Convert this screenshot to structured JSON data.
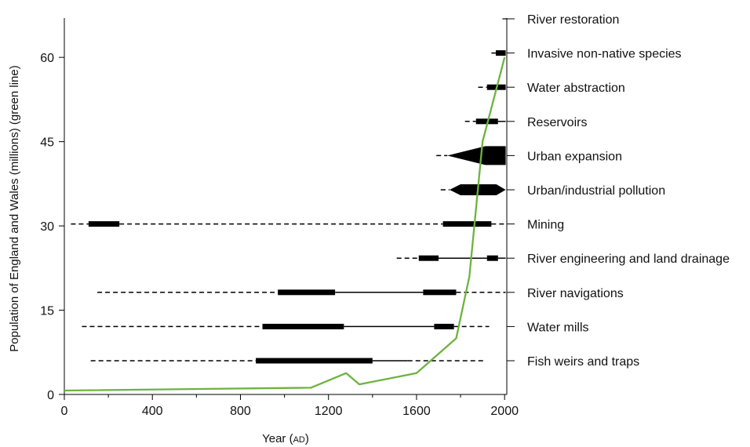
{
  "chart_data": {
    "type": "line",
    "xlabel": "Year (AD)",
    "xlabel_main": "Year (",
    "xlabel_sc": "AD",
    "xlabel_close": ")",
    "ylabel": "Population of England and Wales (millions) (green line)",
    "xlim": [
      0,
      2010
    ],
    "ylim": [
      0,
      67
    ],
    "xticks": [
      0,
      400,
      800,
      1200,
      1600,
      2000
    ],
    "yticks": [
      0,
      15,
      30,
      45,
      60
    ],
    "colors": {
      "population": "#6db33f",
      "pressure": "#000000"
    },
    "series": [
      {
        "values": [
          [
            0,
            0.7
          ],
          [
            1120,
            1.2
          ],
          [
            1280,
            3.8
          ],
          [
            1340,
            1.8
          ],
          [
            1600,
            3.8
          ],
          [
            1780,
            10
          ],
          [
            1840,
            21
          ],
          [
            1900,
            45
          ],
          [
            1940,
            51
          ],
          [
            2000,
            60
          ]
        ]
      }
    ],
    "pressures": [
      {
        "label": "River restoration",
        "segments": [
          {
            "style": "solid",
            "from": 1990,
            "to": 2010,
            "width": 1.2
          }
        ]
      },
      {
        "label": "Invasive non-native species",
        "segments": [
          {
            "style": "solid",
            "from": 1940,
            "to": 1960,
            "width": 1.5
          },
          {
            "style": "bar",
            "from": 1960,
            "to": 2005
          }
        ]
      },
      {
        "label": "Water abstraction",
        "segments": [
          {
            "style": "dashed",
            "from": 1880,
            "to": 1920
          },
          {
            "style": "bar",
            "from": 1920,
            "to": 2005
          }
        ]
      },
      {
        "label": "Reservoirs",
        "segments": [
          {
            "style": "dashed",
            "from": 1820,
            "to": 1870
          },
          {
            "style": "bar",
            "from": 1870,
            "to": 1970
          },
          {
            "style": "solid",
            "from": 1970,
            "to": 2005,
            "width": 1.5
          }
        ]
      },
      {
        "label": "Urban expansion",
        "segments": [
          {
            "style": "dashed",
            "from": 1690,
            "to": 1740
          },
          {
            "style": "wedge",
            "from": 1740,
            "to": 2005
          }
        ]
      },
      {
        "label": "Urban/industrial pollution",
        "segments": [
          {
            "style": "dashed",
            "from": 1710,
            "to": 1750
          },
          {
            "style": "lens",
            "from": 1750,
            "to": 2005
          }
        ]
      },
      {
        "label": "Mining",
        "segments": [
          {
            "style": "dashed",
            "from": 30,
            "to": 110
          },
          {
            "style": "bar",
            "from": 110,
            "to": 250
          },
          {
            "style": "dashed",
            "from": 250,
            "to": 1720
          },
          {
            "style": "bar",
            "from": 1720,
            "to": 1940
          },
          {
            "style": "dashed",
            "from": 1940,
            "to": 2005
          }
        ]
      },
      {
        "label": "River engineering and land drainage",
        "segments": [
          {
            "style": "dashed",
            "from": 1510,
            "to": 1610
          },
          {
            "style": "bar",
            "from": 1610,
            "to": 1700
          },
          {
            "style": "solid",
            "from": 1700,
            "to": 1920,
            "width": 1.5
          },
          {
            "style": "bar",
            "from": 1920,
            "to": 1970
          },
          {
            "style": "solid",
            "from": 1970,
            "to": 2005,
            "width": 1.5
          }
        ]
      },
      {
        "label": "River navigations",
        "segments": [
          {
            "style": "dashed",
            "from": 150,
            "to": 970
          },
          {
            "style": "bar",
            "from": 970,
            "to": 1230
          },
          {
            "style": "solid",
            "from": 1230,
            "to": 1630,
            "width": 1.5
          },
          {
            "style": "bar",
            "from": 1630,
            "to": 1780
          },
          {
            "style": "dashed",
            "from": 1780,
            "to": 2005
          }
        ]
      },
      {
        "label": "Water mills",
        "segments": [
          {
            "style": "dashed",
            "from": 80,
            "to": 900
          },
          {
            "style": "bar",
            "from": 900,
            "to": 1270
          },
          {
            "style": "solid",
            "from": 1270,
            "to": 1680,
            "width": 1.5
          },
          {
            "style": "bar",
            "from": 1680,
            "to": 1770
          },
          {
            "style": "dashed",
            "from": 1770,
            "to": 1930
          }
        ]
      },
      {
        "label": "Fish weirs and traps",
        "segments": [
          {
            "style": "dashed",
            "from": 120,
            "to": 870
          },
          {
            "style": "bar",
            "from": 870,
            "to": 1400
          },
          {
            "style": "solid",
            "from": 1400,
            "to": 1560,
            "width": 1.5
          },
          {
            "style": "dashed",
            "from": 1560,
            "to": 1910
          }
        ]
      }
    ]
  }
}
